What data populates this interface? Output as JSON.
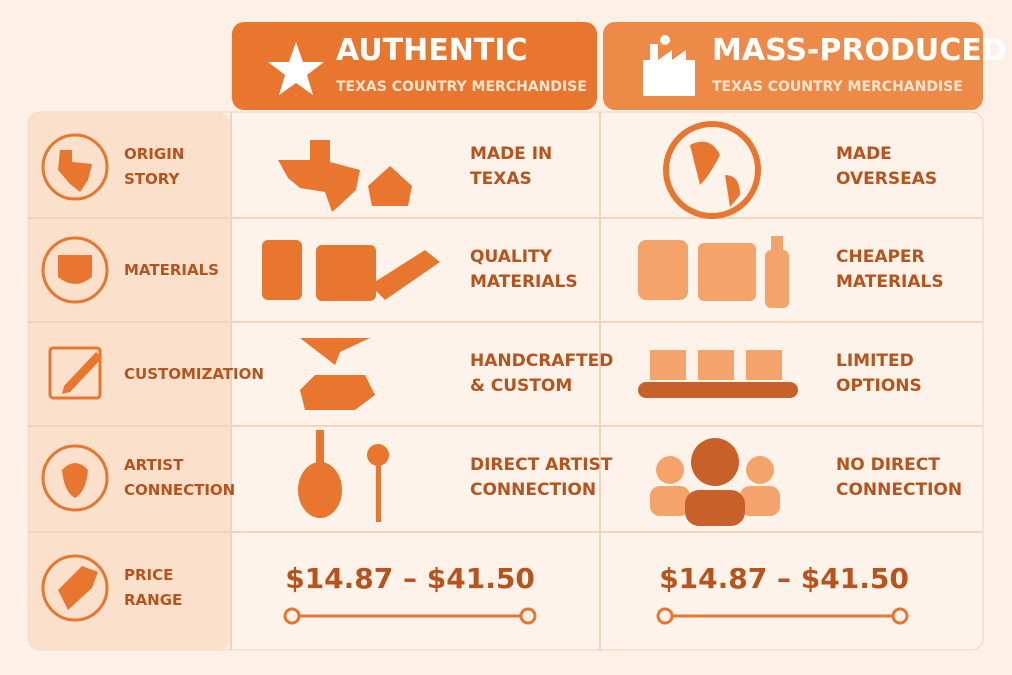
{
  "columns": [
    {
      "title": "AUTHENTIC",
      "subtitle": "TEXAS COUNTRY MERCHANDISE"
    },
    {
      "title": "MASS-PRODUCED",
      "subtitle": "TEXAS COUNTRY MERCHANDISE"
    }
  ],
  "rows": [
    {
      "label": [
        "ORIGIN",
        "STORY"
      ],
      "authentic": [
        "MADE IN",
        "TEXAS"
      ],
      "mass_produced": [
        "MADE",
        "OVERSEAS"
      ]
    },
    {
      "label": [
        "MATERIALS"
      ],
      "authentic": [
        "QUALITY",
        "MATERIALS"
      ],
      "mass_produced": [
        "CHEAPER",
        "MATERIALS"
      ]
    },
    {
      "label": [
        "CUSTOMIZATION"
      ],
      "authentic": [
        "HANDCRAFTED",
        "& CUSTOM"
      ],
      "mass_produced": [
        "LIMITED",
        "OPTIONS"
      ]
    },
    {
      "label": [
        "ARTIST",
        "CONNECTION"
      ],
      "authentic": [
        "DIRECT ARTIST",
        "CONNECTION"
      ],
      "mass_produced": [
        "NO DIRECT",
        "CONNECTION"
      ]
    },
    {
      "label": [
        "PRICE",
        "RANGE"
      ],
      "authentic": [
        "$14.87 – $41.50"
      ],
      "mass_produced": [
        "$14.87 – $41.50"
      ]
    }
  ]
}
